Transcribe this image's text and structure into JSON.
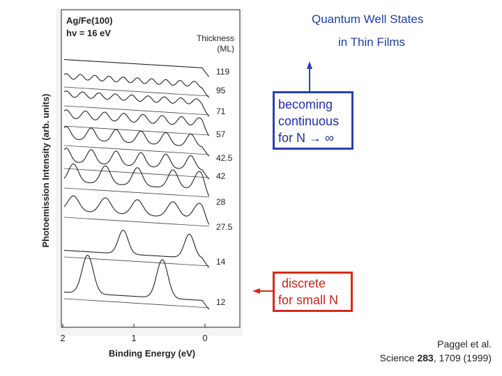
{
  "slide": {
    "title_line1": "Quantum Well States",
    "title_line2": "in Thin Films",
    "arrow_color": "#2a3fb0",
    "blue_box": {
      "lines": [
        "becoming",
        "continuous",
        "for  N → ∞"
      ],
      "color": "#2a3fb0"
    },
    "red_box": {
      "lines": [
        " discrete",
        "for small N"
      ],
      "color": "#d62a1a"
    },
    "citation": {
      "line1": "Paggel et al.",
      "journal": "Science ",
      "volume": "283",
      "rest": ", 1709 (1999)"
    }
  },
  "chart_data": {
    "type": "line",
    "sample_label_1": "Ag/Fe(100)",
    "sample_label_2": "hv = 16 eV",
    "legend_title_1": "Thickness",
    "legend_title_2": "(ML)",
    "xlabel": "Binding Energy (eV)",
    "ylabel": "Photoemission Intensity (arb. units)",
    "x_ticks": [
      "2",
      "1",
      "0"
    ],
    "xlim": [
      2.2,
      -0.3
    ],
    "x_reversed": true,
    "grid": false,
    "series": [
      {
        "name": "119",
        "peaks": []
      },
      {
        "name": "95",
        "peaks": [
          1.95,
          1.75,
          1.55,
          1.35,
          1.15,
          0.95,
          0.75,
          0.55,
          0.35,
          0.15
        ]
      },
      {
        "name": "71",
        "peaks": [
          1.95,
          1.72,
          1.49,
          1.26,
          1.03,
          0.8,
          0.57,
          0.34,
          0.12
        ]
      },
      {
        "name": "57",
        "peaks": [
          1.95,
          1.68,
          1.41,
          1.14,
          0.87,
          0.6,
          0.33,
          0.08
        ]
      },
      {
        "name": "42.5",
        "peaks": [
          1.95,
          1.6,
          1.25,
          0.9,
          0.55,
          0.2
        ]
      },
      {
        "name": "42",
        "peaks": [
          1.95,
          1.6,
          1.25,
          0.9,
          0.55,
          0.2
        ]
      },
      {
        "name": "28",
        "peaks": [
          1.85,
          1.4,
          0.95,
          0.45,
          0.08
        ]
      },
      {
        "name": "27.5",
        "peaks": [
          1.85,
          1.4,
          0.95,
          0.45,
          0.08
        ]
      },
      {
        "name": "14",
        "peaks": [
          1.15,
          0.22
        ]
      },
      {
        "name": "12",
        "peaks": [
          1.65,
          0.6
        ]
      }
    ]
  }
}
